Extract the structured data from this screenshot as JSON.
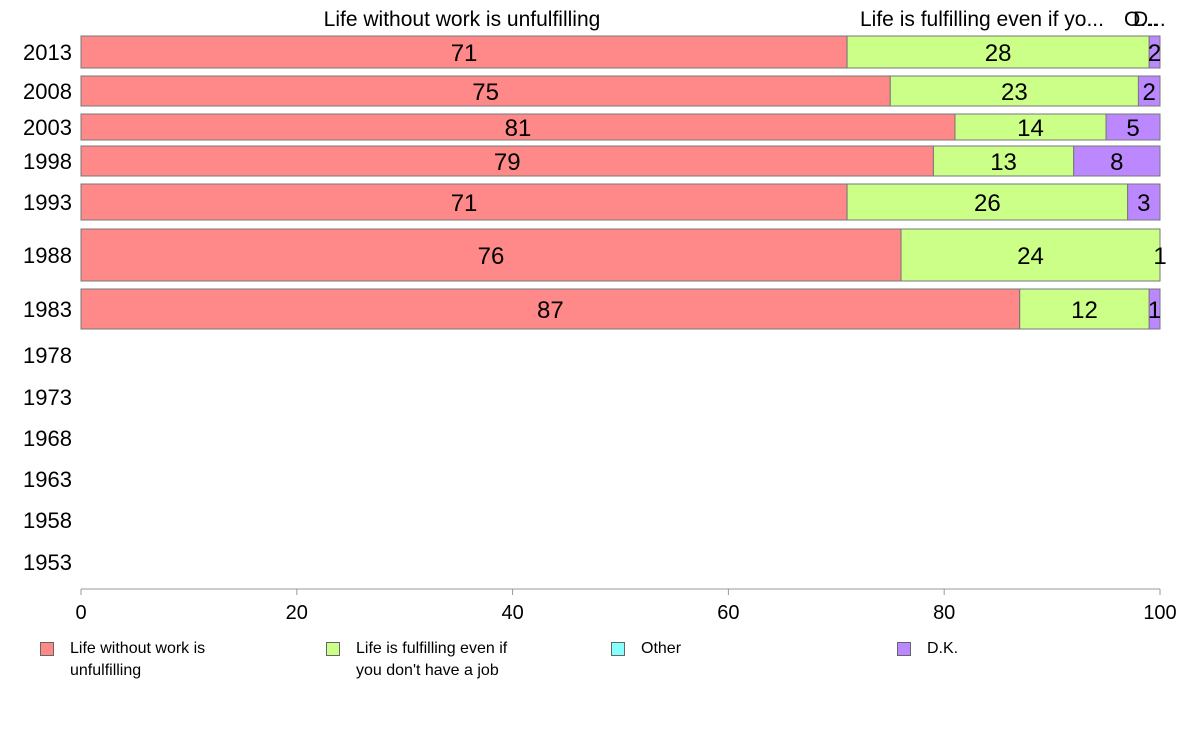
{
  "chart_data": {
    "type": "bar",
    "orientation": "horizontal",
    "stacked": true,
    "categories": [
      "2013",
      "2008",
      "2003",
      "1998",
      "1993",
      "1988",
      "1983",
      "1978",
      "1973",
      "1968",
      "1963",
      "1958",
      "1953"
    ],
    "series": [
      {
        "name": "Life without work is unfulfilling",
        "color": "#ff8888",
        "values": [
          71,
          75,
          81,
          79,
          71,
          76,
          87,
          null,
          null,
          null,
          null,
          null,
          null
        ]
      },
      {
        "name": "Life is fulfilling even if you don't have a job",
        "color": "#ccff88",
        "values": [
          28,
          23,
          14,
          13,
          26,
          24,
          12,
          null,
          null,
          null,
          null,
          null,
          null
        ]
      },
      {
        "name": "Other",
        "color": "#88ffff",
        "values": [
          null,
          null,
          null,
          null,
          null,
          null,
          null,
          null,
          null,
          null,
          null,
          null,
          null
        ]
      },
      {
        "name": "D.K.",
        "color": "#bb88ff",
        "values": [
          2,
          2,
          5,
          8,
          3,
          1,
          1,
          null,
          null,
          null,
          null,
          null,
          null
        ]
      }
    ],
    "xlim": [
      0,
      100
    ],
    "x_ticks": [
      0,
      20,
      40,
      60,
      80,
      100
    ],
    "top_labels": [
      "Life without work is unfulfilling",
      "Life is fulfilling even if yo...",
      "O...",
      "D..."
    ],
    "legend": {
      "position": "bottom",
      "items": [
        "Life without work is unfulfilling",
        "Life is fulfilling even if\nyou don't have a job",
        "Other",
        "D.K."
      ]
    },
    "grid": false
  }
}
